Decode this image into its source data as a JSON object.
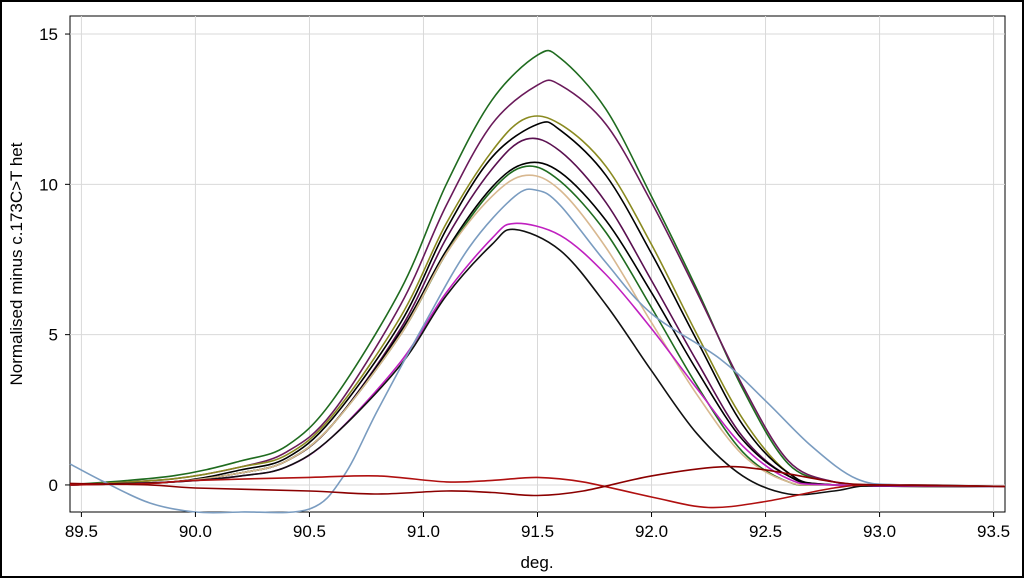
{
  "chart_data": {
    "type": "line",
    "xlabel": "deg.",
    "ylabel": "Normalised minus c.173C>T het",
    "xlim": [
      89.45,
      93.55
    ],
    "ylim": [
      -0.9,
      15.6
    ],
    "grid": true,
    "x_ticks": [
      "89.5",
      "90.0",
      "90.5",
      "91.0",
      "91.5",
      "92.0",
      "92.5",
      "93.0",
      "93.5"
    ],
    "y_ticks": [
      "0",
      "5",
      "10",
      "15"
    ],
    "series": [
      {
        "color": "#1f6b1f",
        "values": [
          [
            89.45,
            0.0
          ],
          [
            89.9,
            0.3
          ],
          [
            90.2,
            0.8
          ],
          [
            90.4,
            1.3
          ],
          [
            90.6,
            2.8
          ],
          [
            90.9,
            6.5
          ],
          [
            91.1,
            10.0
          ],
          [
            91.3,
            12.8
          ],
          [
            91.5,
            14.3
          ],
          [
            91.6,
            14.2
          ],
          [
            91.8,
            12.5
          ],
          [
            92.0,
            9.6
          ],
          [
            92.2,
            6.5
          ],
          [
            92.4,
            3.2
          ],
          [
            92.6,
            0.7
          ],
          [
            92.8,
            0.1
          ],
          [
            93.0,
            0.0
          ],
          [
            93.55,
            -0.05
          ]
        ]
      },
      {
        "color": "#6a1a5a",
        "values": [
          [
            89.45,
            0.0
          ],
          [
            89.9,
            0.2
          ],
          [
            90.2,
            0.6
          ],
          [
            90.4,
            1.1
          ],
          [
            90.6,
            2.4
          ],
          [
            90.9,
            6.0
          ],
          [
            91.1,
            9.3
          ],
          [
            91.3,
            12.0
          ],
          [
            91.5,
            13.3
          ],
          [
            91.6,
            13.3
          ],
          [
            91.8,
            12.0
          ],
          [
            92.0,
            9.4
          ],
          [
            92.2,
            6.4
          ],
          [
            92.4,
            3.3
          ],
          [
            92.6,
            0.8
          ],
          [
            92.8,
            0.1
          ],
          [
            93.0,
            0.0
          ],
          [
            93.55,
            -0.05
          ]
        ]
      },
      {
        "color": "#8a8a20",
        "values": [
          [
            89.45,
            0.0
          ],
          [
            89.9,
            0.2
          ],
          [
            90.2,
            0.6
          ],
          [
            90.4,
            1.0
          ],
          [
            90.6,
            2.3
          ],
          [
            90.9,
            5.6
          ],
          [
            91.1,
            8.7
          ],
          [
            91.3,
            11.1
          ],
          [
            91.45,
            12.2
          ],
          [
            91.6,
            12.0
          ],
          [
            91.8,
            10.6
          ],
          [
            92.0,
            8.0
          ],
          [
            92.2,
            5.0
          ],
          [
            92.4,
            2.2
          ],
          [
            92.6,
            0.4
          ],
          [
            92.8,
            0.0
          ],
          [
            93.55,
            -0.05
          ]
        ]
      },
      {
        "color": "#000000",
        "values": [
          [
            89.45,
            0.0
          ],
          [
            89.9,
            0.1
          ],
          [
            90.2,
            0.5
          ],
          [
            90.4,
            0.9
          ],
          [
            90.6,
            2.2
          ],
          [
            90.9,
            5.4
          ],
          [
            91.1,
            8.5
          ],
          [
            91.3,
            10.9
          ],
          [
            91.5,
            12.0
          ],
          [
            91.6,
            11.8
          ],
          [
            91.8,
            10.3
          ],
          [
            92.0,
            7.7
          ],
          [
            92.2,
            4.8
          ],
          [
            92.4,
            2.0
          ],
          [
            92.6,
            0.4
          ],
          [
            92.8,
            0.0
          ],
          [
            93.55,
            -0.05
          ]
        ]
      },
      {
        "color": "#5a1050",
        "values": [
          [
            89.45,
            0.0
          ],
          [
            89.9,
            0.1
          ],
          [
            90.2,
            0.4
          ],
          [
            90.4,
            0.8
          ],
          [
            90.6,
            2.0
          ],
          [
            90.9,
            5.2
          ],
          [
            91.1,
            8.2
          ],
          [
            91.3,
            10.5
          ],
          [
            91.45,
            11.5
          ],
          [
            91.6,
            11.1
          ],
          [
            91.8,
            9.4
          ],
          [
            92.0,
            6.8
          ],
          [
            92.2,
            4.1
          ],
          [
            92.4,
            1.6
          ],
          [
            92.6,
            0.3
          ],
          [
            92.8,
            0.0
          ],
          [
            93.55,
            -0.05
          ]
        ]
      },
      {
        "color": "#000000",
        "values": [
          [
            89.45,
            0.0
          ],
          [
            89.9,
            0.1
          ],
          [
            90.2,
            0.4
          ],
          [
            90.4,
            0.8
          ],
          [
            90.6,
            2.0
          ],
          [
            90.9,
            5.1
          ],
          [
            91.1,
            7.8
          ],
          [
            91.3,
            9.9
          ],
          [
            91.45,
            10.7
          ],
          [
            91.6,
            10.4
          ],
          [
            91.8,
            8.8
          ],
          [
            92.0,
            6.4
          ],
          [
            92.2,
            3.8
          ],
          [
            92.4,
            1.5
          ],
          [
            92.6,
            0.3
          ],
          [
            92.8,
            0.0
          ],
          [
            93.55,
            -0.05
          ]
        ]
      },
      {
        "color": "#1f6b1f",
        "values": [
          [
            89.45,
            0.0
          ],
          [
            89.9,
            0.1
          ],
          [
            90.2,
            0.4
          ],
          [
            90.4,
            0.8
          ],
          [
            90.6,
            2.0
          ],
          [
            90.9,
            5.0
          ],
          [
            91.1,
            7.7
          ],
          [
            91.3,
            9.8
          ],
          [
            91.45,
            10.6
          ],
          [
            91.6,
            10.1
          ],
          [
            91.8,
            8.4
          ],
          [
            92.0,
            5.9
          ],
          [
            92.2,
            3.3
          ],
          [
            92.4,
            1.1
          ],
          [
            92.6,
            0.1
          ],
          [
            92.8,
            0.0
          ],
          [
            93.55,
            -0.05
          ]
        ]
      },
      {
        "color": "#d8b890",
        "values": [
          [
            89.45,
            0.0
          ],
          [
            89.9,
            0.1
          ],
          [
            90.2,
            0.4
          ],
          [
            90.4,
            0.8
          ],
          [
            90.6,
            2.0
          ],
          [
            90.9,
            5.0
          ],
          [
            91.1,
            7.7
          ],
          [
            91.3,
            9.6
          ],
          [
            91.45,
            10.3
          ],
          [
            91.6,
            9.8
          ],
          [
            91.8,
            7.9
          ],
          [
            92.0,
            5.4
          ],
          [
            92.2,
            3.0
          ],
          [
            92.4,
            1.0
          ],
          [
            92.6,
            0.1
          ],
          [
            92.8,
            0.0
          ],
          [
            93.55,
            -0.05
          ]
        ]
      },
      {
        "color": "#c020c0",
        "values": [
          [
            89.45,
            0.0
          ],
          [
            89.9,
            0.1
          ],
          [
            90.2,
            0.3
          ],
          [
            90.4,
            0.6
          ],
          [
            90.6,
            1.6
          ],
          [
            90.9,
            4.1
          ],
          [
            91.1,
            6.4
          ],
          [
            91.3,
            8.2
          ],
          [
            91.4,
            8.7
          ],
          [
            91.6,
            8.3
          ],
          [
            91.8,
            7.0
          ],
          [
            92.0,
            5.2
          ],
          [
            92.2,
            3.2
          ],
          [
            92.4,
            1.3
          ],
          [
            92.6,
            0.2
          ],
          [
            92.8,
            0.0
          ],
          [
            93.55,
            -0.05
          ]
        ]
      },
      {
        "color": "#111111",
        "values": [
          [
            89.45,
            0.0
          ],
          [
            89.9,
            0.1
          ],
          [
            90.2,
            0.3
          ],
          [
            90.4,
            0.6
          ],
          [
            90.6,
            1.6
          ],
          [
            90.9,
            4.0
          ],
          [
            91.1,
            6.3
          ],
          [
            91.3,
            8.0
          ],
          [
            91.4,
            8.5
          ],
          [
            91.6,
            7.8
          ],
          [
            91.8,
            6.0
          ],
          [
            92.0,
            3.8
          ],
          [
            92.2,
            1.7
          ],
          [
            92.4,
            0.3
          ],
          [
            92.6,
            -0.3
          ],
          [
            92.8,
            -0.2
          ],
          [
            93.0,
            0.0
          ],
          [
            93.55,
            -0.05
          ]
        ]
      },
      {
        "color": "#7a9cc0",
        "values": [
          [
            89.45,
            0.7
          ],
          [
            89.6,
            0.1
          ],
          [
            89.8,
            -0.6
          ],
          [
            90.0,
            -0.9
          ],
          [
            90.2,
            -0.9
          ],
          [
            90.5,
            -0.8
          ],
          [
            90.65,
            0.3
          ],
          [
            90.8,
            2.5
          ],
          [
            91.0,
            5.3
          ],
          [
            91.2,
            7.9
          ],
          [
            91.4,
            9.6
          ],
          [
            91.5,
            9.8
          ],
          [
            91.6,
            9.3
          ],
          [
            91.8,
            7.4
          ],
          [
            92.0,
            5.7
          ],
          [
            92.3,
            4.2
          ],
          [
            92.5,
            2.8
          ],
          [
            92.7,
            1.3
          ],
          [
            92.9,
            0.2
          ],
          [
            93.1,
            0.0
          ],
          [
            93.55,
            -0.05
          ]
        ]
      },
      {
        "color": "#b01010",
        "values": [
          [
            89.45,
            0.0
          ],
          [
            89.8,
            0.05
          ],
          [
            90.0,
            0.15
          ],
          [
            90.5,
            0.25
          ],
          [
            90.8,
            0.3
          ],
          [
            91.1,
            0.1
          ],
          [
            91.3,
            0.15
          ],
          [
            91.5,
            0.25
          ],
          [
            91.7,
            0.1
          ],
          [
            92.0,
            -0.4
          ],
          [
            92.25,
            -0.75
          ],
          [
            92.5,
            -0.55
          ],
          [
            92.8,
            -0.1
          ],
          [
            93.0,
            0.0
          ],
          [
            93.55,
            -0.05
          ]
        ]
      },
      {
        "color": "#8b0000",
        "values": [
          [
            89.45,
            0.05
          ],
          [
            89.8,
            0.0
          ],
          [
            90.0,
            -0.1
          ],
          [
            90.5,
            -0.2
          ],
          [
            90.8,
            -0.3
          ],
          [
            91.1,
            -0.2
          ],
          [
            91.3,
            -0.25
          ],
          [
            91.5,
            -0.35
          ],
          [
            91.7,
            -0.2
          ],
          [
            92.0,
            0.3
          ],
          [
            92.3,
            0.6
          ],
          [
            92.5,
            0.5
          ],
          [
            92.8,
            0.1
          ],
          [
            93.0,
            0.0
          ],
          [
            93.55,
            -0.05
          ]
        ]
      }
    ]
  }
}
